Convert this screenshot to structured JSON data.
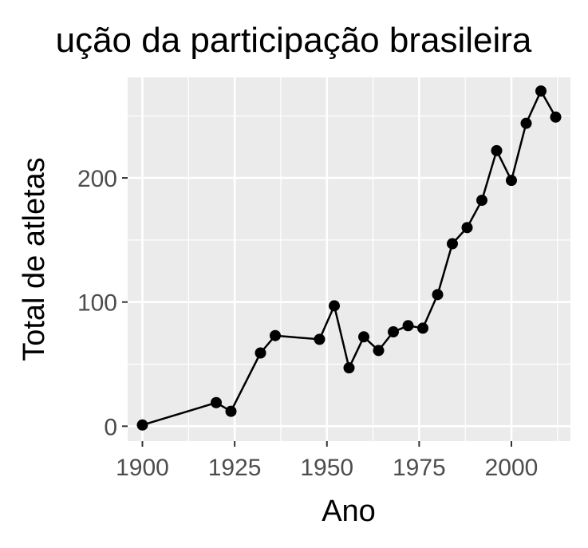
{
  "chart_data": {
    "type": "line",
    "title": "ução da participação brasileira",
    "xlabel": "Ano",
    "ylabel": "Total de atletas",
    "x_ticks": [
      1900,
      1925,
      1950,
      1975,
      2000
    ],
    "y_ticks": [
      0,
      100,
      200
    ],
    "xlim": [
      1896,
      2016
    ],
    "ylim": [
      -12,
      281
    ],
    "grid": true,
    "legend": "none",
    "series": [
      {
        "x": [
          1900,
          1920,
          1924,
          1932,
          1936,
          1948,
          1952,
          1956,
          1960,
          1964,
          1968,
          1972,
          1976,
          1980,
          1984,
          1988,
          1992,
          1996,
          2000,
          2004,
          2008,
          2012
        ],
        "y": [
          1,
          19,
          12,
          59,
          73,
          70,
          97,
          47,
          72,
          61,
          76,
          81,
          79,
          106,
          147,
          160,
          182,
          222,
          198,
          244,
          270,
          249
        ]
      }
    ],
    "colors": {
      "panel": "#ebebeb",
      "grid": "#ffffff",
      "line": "#000000",
      "point": "#000000",
      "tick": "#4d4d4d"
    }
  }
}
